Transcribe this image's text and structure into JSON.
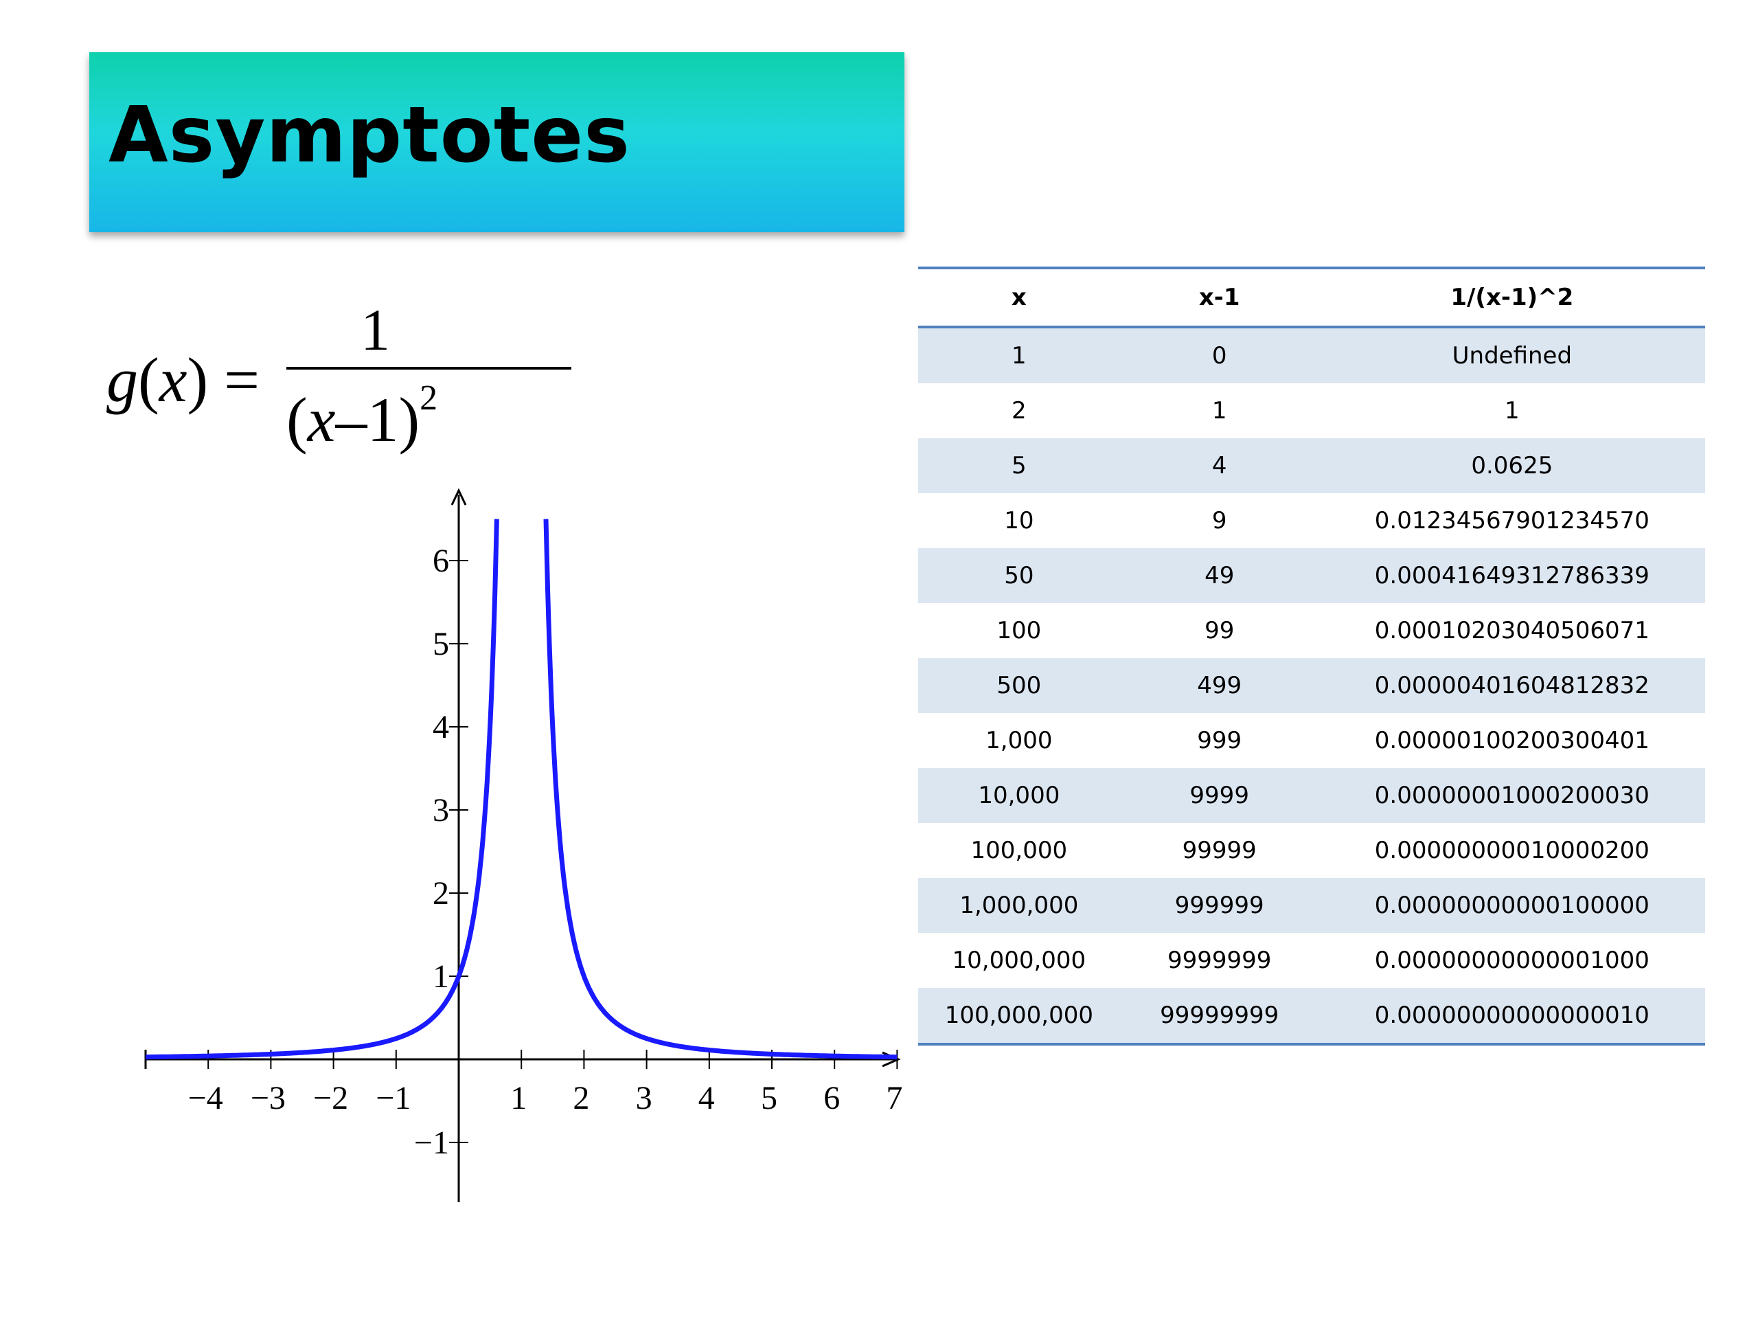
{
  "title": "Asymptotes",
  "formula": {
    "lhs_fn": "g",
    "lhs_var": "x",
    "numerator": "1",
    "denominator_var": "x",
    "denominator_rest": "–1",
    "exponent": "2"
  },
  "chart_data": {
    "type": "line",
    "function": "1/(x-1)^2",
    "xlim": [
      -5,
      7
    ],
    "ylim": [
      -1.5,
      6.5
    ],
    "x_ticks": [
      -4,
      -3,
      -2,
      -1,
      1,
      2,
      3,
      4,
      5,
      6,
      7
    ],
    "x_tick_labels": [
      "−4",
      "−3",
      "−2",
      "−1",
      "1",
      "2",
      "3",
      "4",
      "5",
      "6",
      "7"
    ],
    "y_ticks": [
      -1,
      1,
      2,
      3,
      4,
      5,
      6
    ],
    "y_tick_labels": [
      "−1",
      "1",
      "2",
      "3",
      "4",
      "5",
      "6"
    ],
    "series": [
      {
        "color": "#1a1aff"
      }
    ]
  },
  "table": {
    "headers": [
      "x",
      "x-1",
      "1/(x-1)^2"
    ],
    "rows": [
      [
        "1",
        "0",
        "Undefined"
      ],
      [
        "2",
        "1",
        "1"
      ],
      [
        "5",
        "4",
        "0.0625"
      ],
      [
        "10",
        "9",
        "0.01234567901234570"
      ],
      [
        "50",
        "49",
        "0.00041649312786339"
      ],
      [
        "100",
        "99",
        "0.00010203040506071"
      ],
      [
        "500",
        "499",
        "0.00000401604812832"
      ],
      [
        "1,000",
        "999",
        "0.00000100200300401"
      ],
      [
        "10,000",
        "9999",
        "0.00000001000200030"
      ],
      [
        "100,000",
        "99999",
        "0.00000000010000200"
      ],
      [
        "1,000,000",
        "999999",
        "0.00000000000100000"
      ],
      [
        "10,000,000",
        "9999999",
        "0.00000000000001000"
      ],
      [
        "100,000,000",
        "99999999",
        "0.00000000000000010"
      ]
    ]
  }
}
